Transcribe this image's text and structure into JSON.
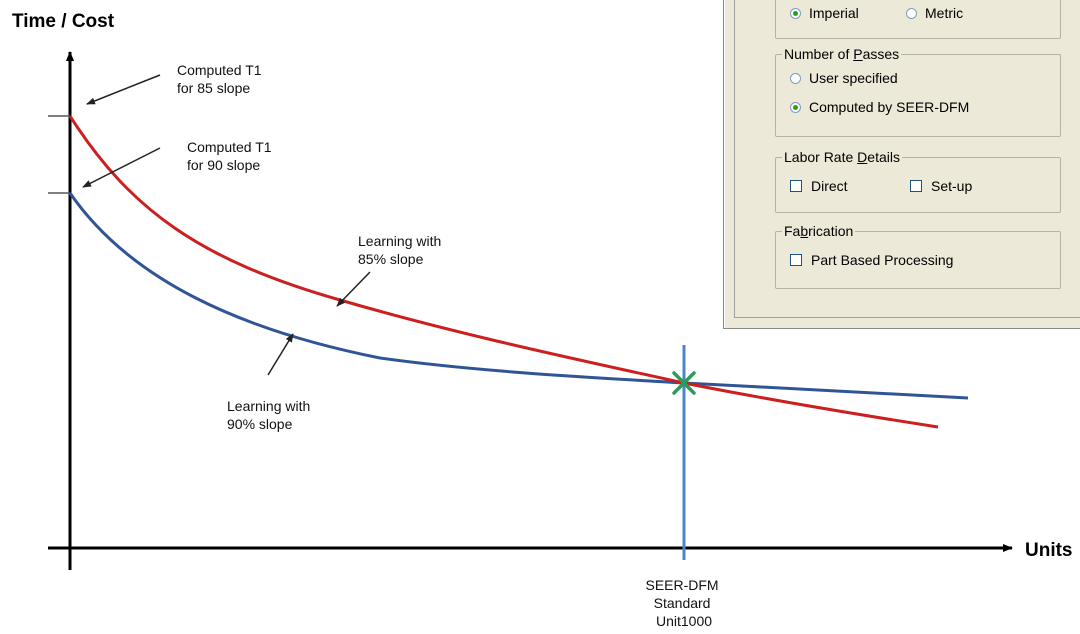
{
  "axes": {
    "y_title": "Time / Cost",
    "x_title": "Units"
  },
  "annotations": {
    "t1_85": [
      "Computed T1",
      "for 85 slope"
    ],
    "t1_90": [
      "Computed T1",
      "for 90 slope"
    ],
    "learn_85": [
      "Learning with",
      "85% slope"
    ],
    "learn_90": [
      "Learning with",
      "90% slope"
    ],
    "standard_unit": [
      "SEER-DFM",
      "Standard",
      "Unit1000"
    ]
  },
  "colors": {
    "curve_85": "#cc1f1f",
    "curve_90": "#2f5596",
    "standard_line": "#4a85c8",
    "intersection_mark": "#2e9a5a"
  },
  "dialog": {
    "units_group": {
      "options": [
        {
          "label": "Imperial",
          "selected": true
        },
        {
          "label": "Metric",
          "selected": false
        }
      ]
    },
    "passes_group": {
      "title_pre": "Number of ",
      "title_ul": "P",
      "title_post": "asses",
      "options": [
        {
          "label": "User specified",
          "selected": false
        },
        {
          "label": "Computed by SEER-DFM",
          "selected": true
        }
      ]
    },
    "labor_group": {
      "title_pre": "Labor Rate ",
      "title_ul": "D",
      "title_post": "etails",
      "checks": [
        {
          "label": "Direct",
          "checked": false
        },
        {
          "label": "Set-up",
          "checked": false
        }
      ]
    },
    "fab_group": {
      "title_pre": "Fa",
      "title_ul": "b",
      "title_post": "rication",
      "checks": [
        {
          "label": "Part Based Processing",
          "checked": false
        }
      ]
    }
  }
}
